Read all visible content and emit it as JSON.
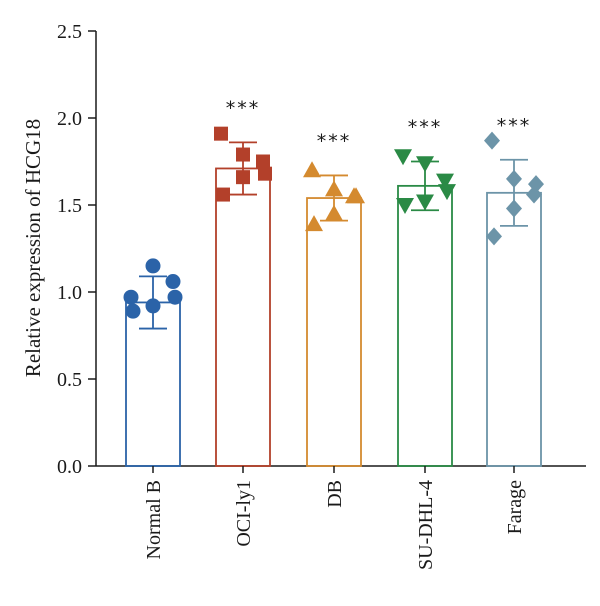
{
  "chart_data": {
    "type": "bar",
    "title": "",
    "xlabel": "",
    "ylabel": "Relative expression of HCG18",
    "ylim": [
      0,
      2.5
    ],
    "yticks": [
      "0.0",
      "0.5",
      "1.0",
      "1.5",
      "2.0",
      "2.5"
    ],
    "grid": false,
    "categories": [
      "Normal B",
      "OCI-ly1",
      "DB",
      "SU-DHL-4",
      "Farage"
    ],
    "values": [
      0.94,
      1.71,
      1.54,
      1.61,
      1.57
    ],
    "error": [
      0.15,
      0.15,
      0.13,
      0.14,
      0.19
    ],
    "significance": [
      "",
      "***",
      "***",
      "***",
      "***"
    ],
    "colors": [
      "#2b63a8",
      "#b3402a",
      "#d48a2f",
      "#2a8a45",
      "#6c94a8"
    ],
    "markers": [
      "circle",
      "square",
      "triangle-up",
      "triangle-down",
      "diamond"
    ],
    "points": [
      [
        0.97,
        1.15,
        0.97,
        0.92,
        0.89,
        1.06
      ],
      [
        1.91,
        1.79,
        1.68,
        1.66,
        1.56,
        1.75
      ],
      [
        1.7,
        1.59,
        1.55,
        1.45,
        1.39,
        1.55
      ],
      [
        1.78,
        1.74,
        1.58,
        1.52,
        1.5,
        1.64
      ],
      [
        1.87,
        1.65,
        1.62,
        1.48,
        1.32,
        1.56
      ]
    ]
  }
}
